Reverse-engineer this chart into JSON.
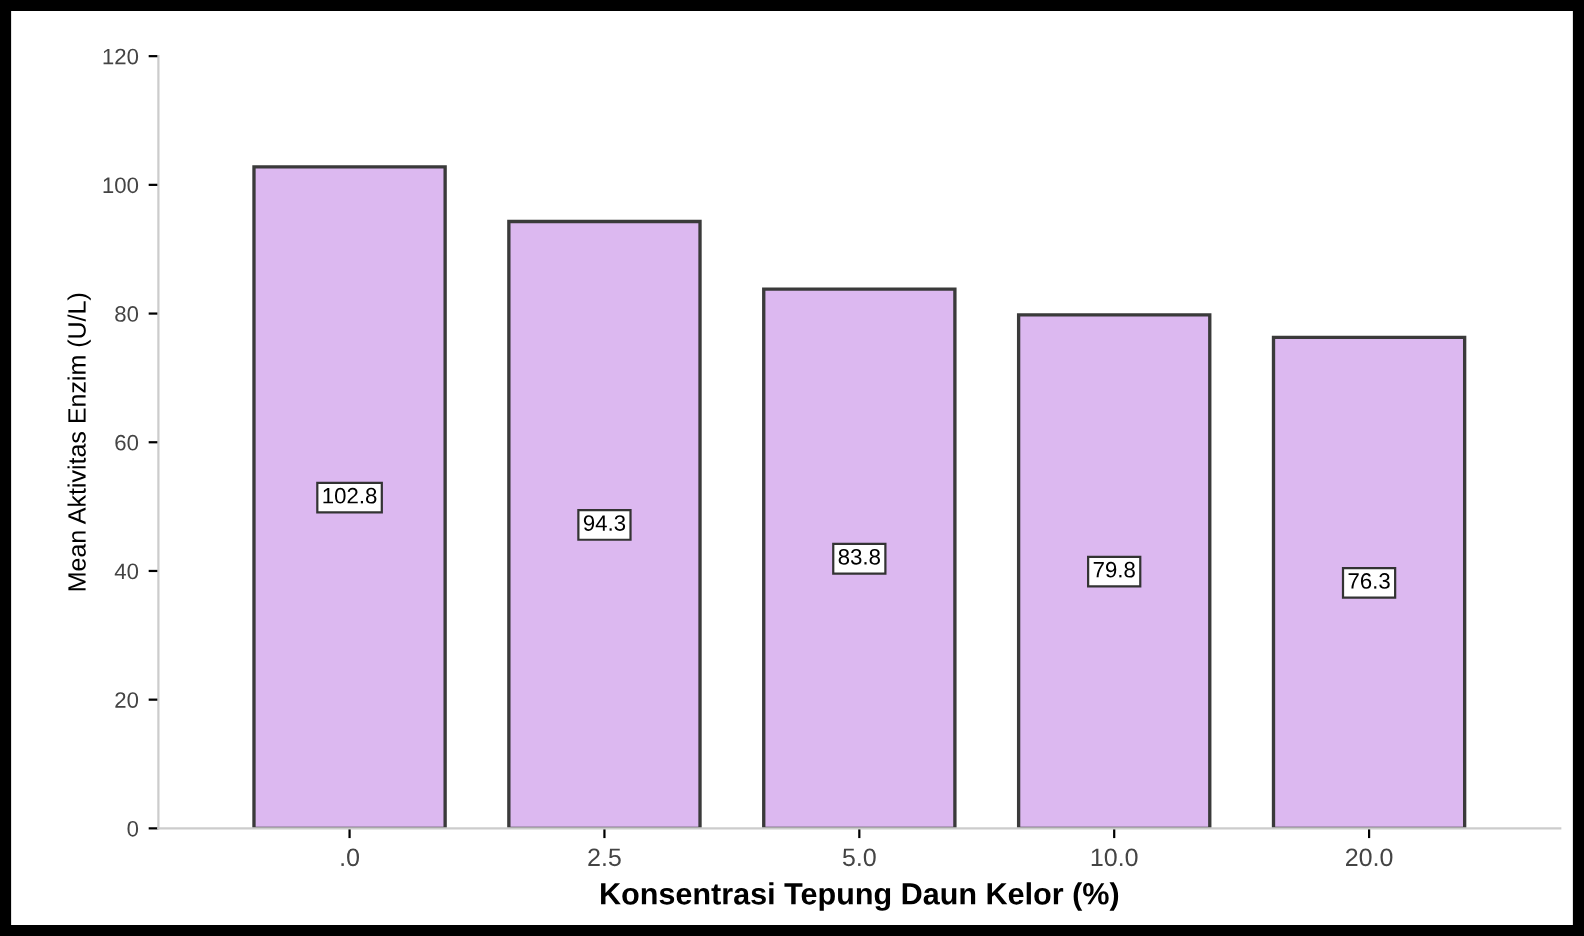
{
  "chart_data": {
    "type": "bar",
    "xlabel": "Konsentrasi Tepung Daun Kelor (%)",
    "ylabel": "Mean Aktivitas Enzim (U/L)",
    "categories": [
      ".0",
      "2.5",
      "5.0",
      "10.0",
      "20.0"
    ],
    "values": [
      102.8,
      94.3,
      83.8,
      79.8,
      76.3
    ],
    "color": "#dcb8f0",
    "data_labels": true,
    "ylim": [
      0,
      120
    ],
    "yticks": [
      0,
      20,
      40,
      60,
      80,
      100,
      120
    ],
    "grid": false,
    "legend": false
  }
}
